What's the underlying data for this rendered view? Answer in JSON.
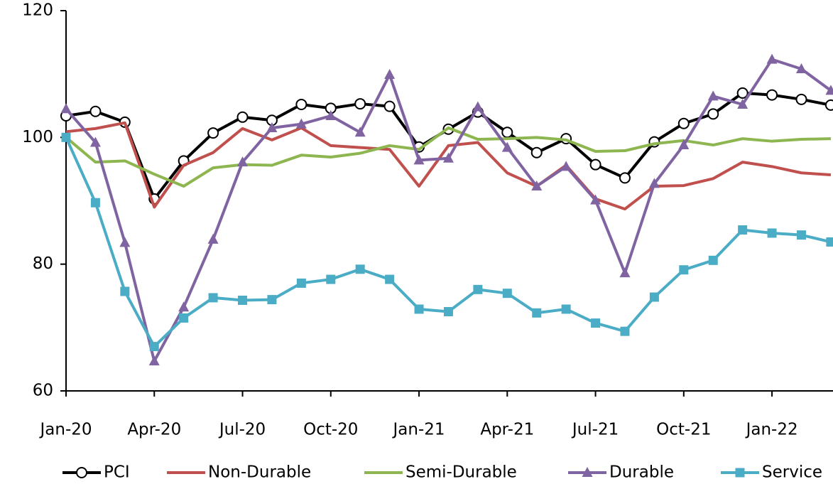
{
  "chart_data": {
    "type": "line",
    "categories": [
      "Jan-20",
      null,
      null,
      "Apr-20",
      null,
      null,
      "Jul-20",
      null,
      null,
      "Oct-20",
      null,
      null,
      "Jan-21",
      null,
      null,
      "Apr-21",
      null,
      null,
      "Jul-21",
      null,
      null,
      "Oct-21",
      null,
      null,
      "Jan-22",
      null,
      null
    ],
    "ylim": [
      60,
      120
    ],
    "yticks": [
      60,
      80,
      100,
      120
    ],
    "series": [
      {
        "name": "PCI",
        "color": "#000000",
        "marker": "circle",
        "values": [
          103.4,
          104.1,
          102.4,
          90.3,
          96.3,
          100.7,
          103.2,
          102.7,
          105.2,
          104.6,
          105.3,
          104.9,
          98.5,
          101.3,
          104.0,
          100.8,
          97.6,
          99.8,
          95.7,
          93.6,
          99.3,
          102.2,
          103.7,
          107.0,
          106.7,
          106.0,
          105.1
        ]
      },
      {
        "name": "Non-Durable",
        "color": "#c0504d",
        "marker": "none",
        "values": [
          100.9,
          101.4,
          102.3,
          89.0,
          95.6,
          97.6,
          101.4,
          99.6,
          101.5,
          98.7,
          98.4,
          98.1,
          92.3,
          98.7,
          99.2,
          94.4,
          92.3,
          95.6,
          90.3,
          88.7,
          92.3,
          92.4,
          93.5,
          96.1,
          95.4,
          94.4,
          94.1
        ]
      },
      {
        "name": "Semi-Durable",
        "color": "#8db650",
        "marker": "none",
        "values": [
          100.0,
          96.1,
          96.3,
          94.2,
          92.3,
          95.2,
          95.7,
          95.6,
          97.2,
          96.9,
          97.5,
          98.7,
          98.1,
          101.5,
          99.7,
          99.8,
          100.0,
          99.6,
          97.8,
          97.9,
          99.0,
          99.5,
          98.8,
          99.8,
          99.4,
          99.7,
          99.8
        ]
      },
      {
        "name": "Durable",
        "color": "#8064a2",
        "marker": "triangle",
        "values": [
          104.5,
          99.2,
          83.4,
          64.7,
          73.2,
          83.9,
          96.1,
          101.5,
          102.1,
          103.4,
          100.8,
          109.9,
          96.4,
          96.7,
          104.8,
          98.4,
          92.3,
          95.4,
          90.1,
          78.6,
          92.7,
          98.8,
          106.5,
          105.2,
          112.3,
          110.8,
          107.4
        ]
      },
      {
        "name": "Service",
        "color": "#4bacc6",
        "marker": "square",
        "values": [
          100.0,
          89.7,
          75.7,
          67.0,
          71.5,
          74.7,
          74.3,
          74.4,
          77.0,
          77.6,
          79.2,
          77.6,
          72.9,
          72.5,
          76.0,
          75.4,
          72.3,
          72.9,
          70.7,
          69.4,
          74.8,
          79.1,
          80.6,
          85.4,
          84.9,
          84.6,
          83.5
        ]
      }
    ]
  }
}
